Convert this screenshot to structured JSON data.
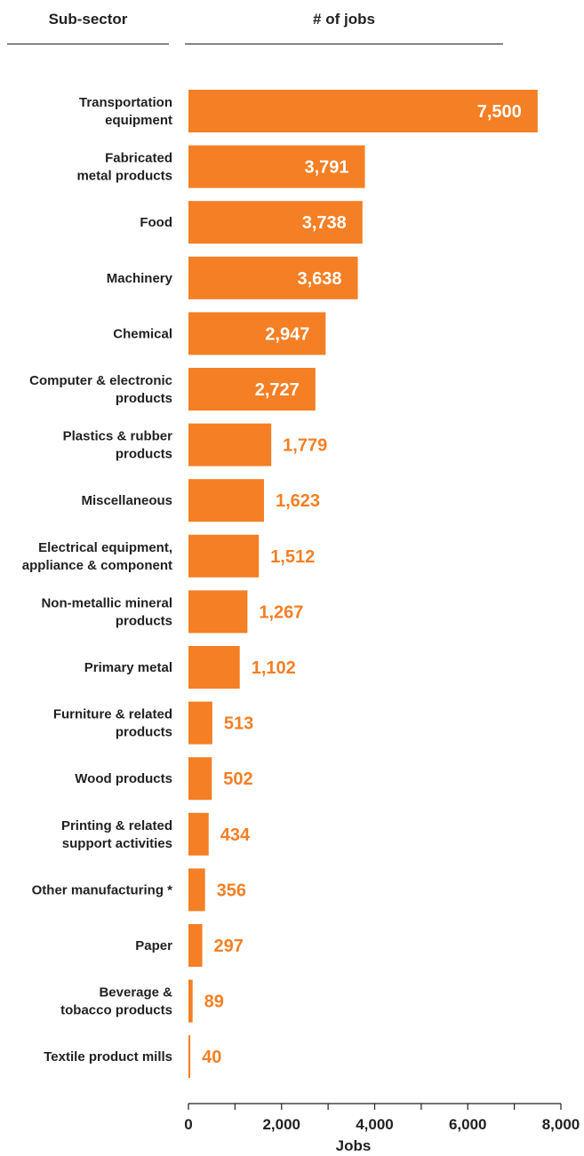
{
  "header": {
    "col1": "Sub-sector",
    "col2": "# of jobs"
  },
  "chart_data": {
    "type": "bar",
    "orientation": "horizontal",
    "categories": [
      [
        "Transportation",
        "equipment"
      ],
      [
        "Fabricated",
        "metal products"
      ],
      [
        "Food"
      ],
      [
        "Machinery"
      ],
      [
        "Chemical"
      ],
      [
        "Computer & electronic",
        "products"
      ],
      [
        "Plastics & rubber",
        "products"
      ],
      [
        "Miscellaneous"
      ],
      [
        "Electrical equipment,",
        "appliance & component"
      ],
      [
        "Non-metallic mineral",
        "products"
      ],
      [
        "Primary metal"
      ],
      [
        "Furniture & related",
        "products"
      ],
      [
        "Wood products"
      ],
      [
        "Printing & related",
        "support activities"
      ],
      [
        "Other manufacturing *"
      ],
      [
        "Paper"
      ],
      [
        "Beverage &",
        "tobacco products"
      ],
      [
        "Textile product mills"
      ]
    ],
    "values": [
      7500,
      3791,
      3738,
      3638,
      2947,
      2727,
      1779,
      1623,
      1512,
      1267,
      1102,
      513,
      502,
      434,
      356,
      297,
      89,
      40
    ],
    "value_labels": [
      "7,500",
      "3,791",
      "3,738",
      "3,638",
      "2,947",
      "2,727",
      "1,779",
      "1,623",
      "1,512",
      "1,267",
      "1,102",
      "513",
      "502",
      "434",
      "356",
      "297",
      "89",
      "40"
    ],
    "xlabel": "Jobs",
    "xlim": [
      0,
      8000
    ],
    "xticks": [
      0,
      2000,
      4000,
      6000,
      8000
    ],
    "xtick_labels": [
      "0",
      "2,000",
      "4,000",
      "6,000",
      "8,000"
    ],
    "grid": false,
    "colors": {
      "bar": "#f47f24",
      "label_outside": "#f47f24",
      "label_inside": "#ffffff",
      "text": "#231f20"
    }
  }
}
